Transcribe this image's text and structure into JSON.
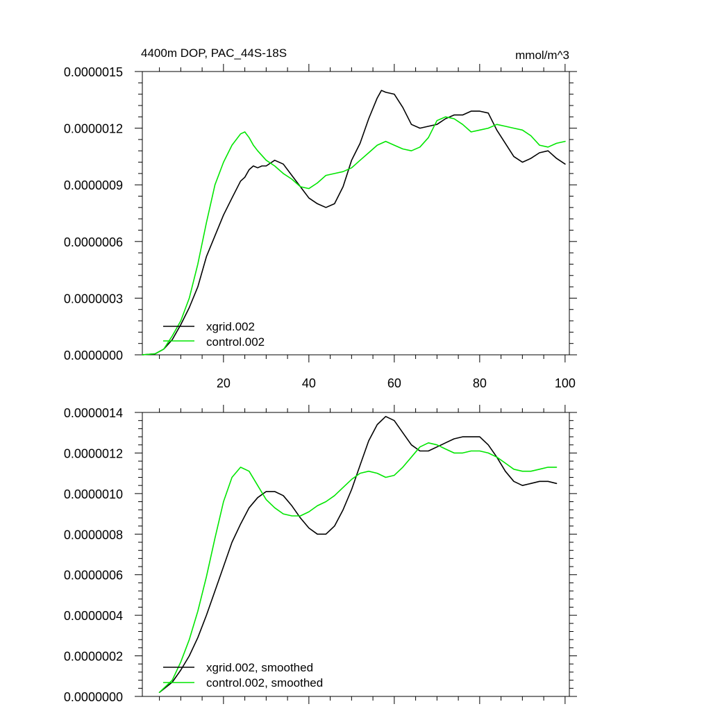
{
  "chart_data": [
    {
      "type": "line",
      "title": "4400m DOP, PAC_44S-18S",
      "units": "mmol/m^3",
      "xlim": [
        1,
        101
      ],
      "ylim": [
        0,
        1.5e-06
      ],
      "x_ticks": [
        "20",
        "40",
        "60",
        "80",
        "100"
      ],
      "x_tick_values": [
        20,
        40,
        60,
        80,
        100
      ],
      "y_ticks": [
        "0.0000000",
        "0.0000003",
        "0.0000006",
        "0.0000009",
        "0.0000012",
        "0.0000015"
      ],
      "y_tick_values": [
        0,
        3e-07,
        6e-07,
        9e-07,
        1.2e-06,
        1.5e-06
      ],
      "legend_position": "bottom-left",
      "grid": false,
      "series": [
        {
          "name": "xgrid.002",
          "color": "#000000",
          "x": [
            1,
            4,
            6,
            8,
            10,
            12,
            14,
            16,
            18,
            20,
            22,
            24,
            25,
            26,
            27,
            28,
            29,
            30,
            32,
            34,
            36,
            38,
            40,
            42,
            44,
            46,
            48,
            50,
            52,
            54,
            56,
            57,
            58,
            60,
            62,
            64,
            66,
            68,
            70,
            72,
            74,
            76,
            78,
            80,
            82,
            84,
            86,
            88,
            90,
            92,
            94,
            96,
            98,
            100
          ],
          "y": [
            0.0,
            5e-09,
            3e-08,
            8e-08,
            1.6e-07,
            2.5e-07,
            3.6e-07,
            5.2e-07,
            6.3e-07,
            7.4e-07,
            8.3e-07,
            9.2e-07,
            9.4e-07,
            9.8e-07,
            1e-06,
            9.9e-07,
            1e-06,
            1e-06,
            1.03e-06,
            1.01e-06,
            9.5e-07,
            8.9e-07,
            8.3e-07,
            8e-07,
            7.8e-07,
            8e-07,
            8.9e-07,
            1.03e-06,
            1.12e-06,
            1.25e-06,
            1.36e-06,
            1.4e-06,
            1.39e-06,
            1.38e-06,
            1.31e-06,
            1.22e-06,
            1.2e-06,
            1.21e-06,
            1.22e-06,
            1.25e-06,
            1.27e-06,
            1.27e-06,
            1.29e-06,
            1.29e-06,
            1.28e-06,
            1.19e-06,
            1.12e-06,
            1.05e-06,
            1.02e-06,
            1.04e-06,
            1.07e-06,
            1.08e-06,
            1.04e-06,
            1.01e-06
          ]
        },
        {
          "name": "control.002",
          "color": "#00e600",
          "x": [
            1,
            4,
            6,
            8,
            10,
            12,
            14,
            16,
            18,
            20,
            22,
            24,
            25,
            26,
            27,
            28,
            30,
            32,
            34,
            36,
            38,
            40,
            42,
            44,
            46,
            48,
            50,
            52,
            54,
            56,
            58,
            60,
            62,
            64,
            66,
            68,
            70,
            72,
            74,
            76,
            78,
            80,
            82,
            84,
            86,
            88,
            90,
            92,
            94,
            96,
            98,
            100
          ],
          "y": [
            0.0,
            5e-09,
            3e-08,
            1e-07,
            1.8e-07,
            3e-07,
            4.8e-07,
            7e-07,
            9e-07,
            1.02e-06,
            1.11e-06,
            1.17e-06,
            1.18e-06,
            1.15e-06,
            1.11e-06,
            1.08e-06,
            1.03e-06,
            1e-06,
            9.6e-07,
            9.3e-07,
            8.9e-07,
            8.8e-07,
            9.1e-07,
            9.5e-07,
            9.6e-07,
            9.7e-07,
            9.9e-07,
            1.03e-06,
            1.07e-06,
            1.11e-06,
            1.13e-06,
            1.11e-06,
            1.09e-06,
            1.08e-06,
            1.1e-06,
            1.15e-06,
            1.24e-06,
            1.26e-06,
            1.25e-06,
            1.22e-06,
            1.18e-06,
            1.19e-06,
            1.2e-06,
            1.22e-06,
            1.21e-06,
            1.2e-06,
            1.19e-06,
            1.16e-06,
            1.11e-06,
            1.1e-06,
            1.12e-06,
            1.13e-06
          ]
        }
      ]
    },
    {
      "type": "line",
      "xlim": [
        1,
        101
      ],
      "ylim": [
        0,
        1.4e-06
      ],
      "x_tick_values": [
        20,
        40,
        60,
        80,
        100
      ],
      "y_ticks": [
        "0.0000000",
        "0.0000002",
        "0.0000004",
        "0.0000006",
        "0.0000008",
        "0.0000010",
        "0.0000012",
        "0.0000014"
      ],
      "y_tick_values": [
        0,
        2e-07,
        4e-07,
        6e-07,
        8e-07,
        1e-06,
        1.2e-06,
        1.4e-06
      ],
      "legend_position": "bottom-left",
      "grid": false,
      "series": [
        {
          "name": "xgrid.002, smoothed",
          "color": "#000000",
          "x": [
            5,
            8,
            10,
            12,
            14,
            16,
            18,
            20,
            22,
            24,
            26,
            28,
            30,
            32,
            34,
            36,
            38,
            40,
            42,
            44,
            46,
            48,
            50,
            52,
            54,
            56,
            58,
            60,
            62,
            64,
            66,
            68,
            70,
            72,
            74,
            76,
            78,
            80,
            82,
            84,
            86,
            88,
            90,
            92,
            94,
            96,
            98
          ],
          "y": [
            2e-08,
            7e-08,
            1.3e-07,
            2e-07,
            2.9e-07,
            4e-07,
            5.2e-07,
            6.4e-07,
            7.6e-07,
            8.5e-07,
            9.3e-07,
            9.8e-07,
            1.01e-06,
            1.01e-06,
            9.9e-07,
            9.4e-07,
            8.8e-07,
            8.3e-07,
            8e-07,
            8e-07,
            8.4e-07,
            9.2e-07,
            1.02e-06,
            1.14e-06,
            1.26e-06,
            1.34e-06,
            1.38e-06,
            1.36e-06,
            1.3e-06,
            1.24e-06,
            1.21e-06,
            1.21e-06,
            1.23e-06,
            1.25e-06,
            1.27e-06,
            1.28e-06,
            1.28e-06,
            1.28e-06,
            1.24e-06,
            1.18e-06,
            1.11e-06,
            1.06e-06,
            1.04e-06,
            1.05e-06,
            1.06e-06,
            1.06e-06,
            1.05e-06
          ]
        },
        {
          "name": "control.002, smoothed",
          "color": "#00e600",
          "x": [
            5,
            8,
            10,
            12,
            14,
            16,
            18,
            20,
            22,
            24,
            26,
            28,
            30,
            32,
            34,
            36,
            38,
            40,
            42,
            44,
            46,
            48,
            50,
            52,
            54,
            56,
            58,
            60,
            62,
            64,
            66,
            68,
            70,
            72,
            74,
            76,
            78,
            80,
            82,
            84,
            86,
            88,
            90,
            92,
            94,
            96,
            98
          ],
          "y": [
            2e-08,
            8e-08,
            1.7e-07,
            2.8e-07,
            4.2e-07,
            5.9e-07,
            7.8e-07,
            9.6e-07,
            1.08e-06,
            1.13e-06,
            1.11e-06,
            1.04e-06,
            9.7e-07,
            9.3e-07,
            9e-07,
            8.9e-07,
            8.9e-07,
            9.1e-07,
            9.4e-07,
            9.6e-07,
            9.9e-07,
            1.03e-06,
            1.07e-06,
            1.1e-06,
            1.11e-06,
            1.1e-06,
            1.08e-06,
            1.09e-06,
            1.13e-06,
            1.18e-06,
            1.23e-06,
            1.25e-06,
            1.24e-06,
            1.22e-06,
            1.2e-06,
            1.2e-06,
            1.21e-06,
            1.21e-06,
            1.2e-06,
            1.18e-06,
            1.15e-06,
            1.12e-06,
            1.11e-06,
            1.11e-06,
            1.12e-06,
            1.13e-06,
            1.13e-06
          ]
        }
      ]
    }
  ]
}
